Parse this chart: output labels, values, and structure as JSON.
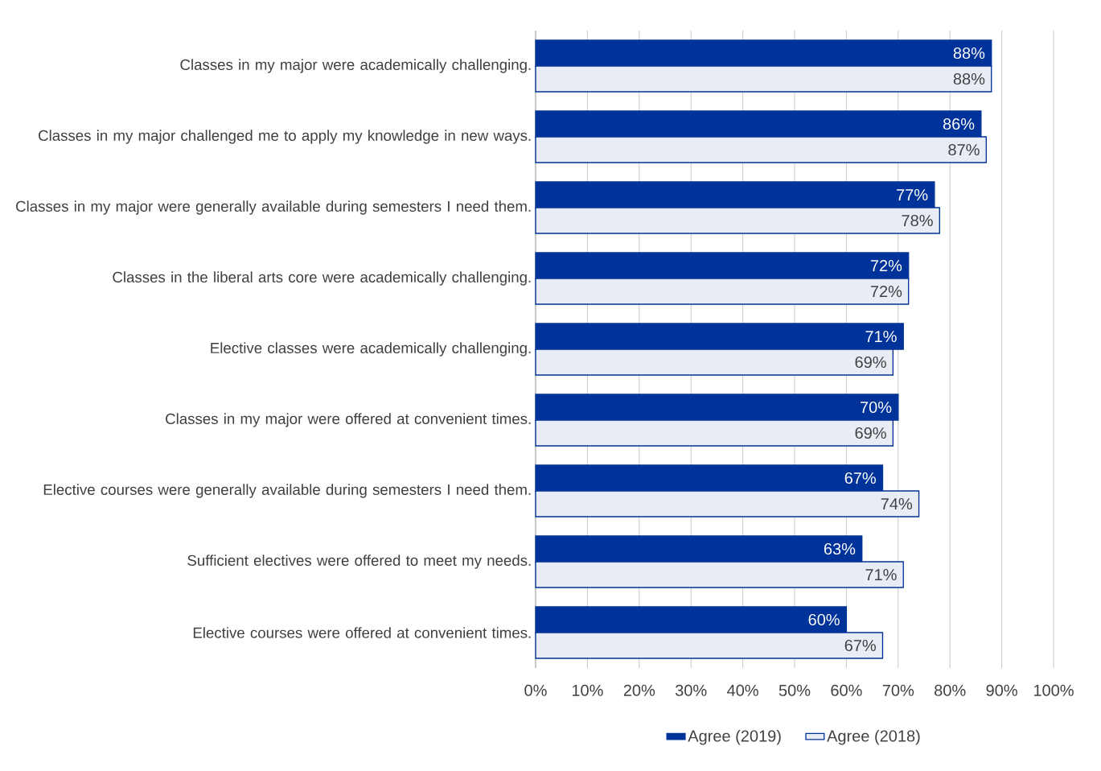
{
  "chart_data": {
    "type": "bar",
    "orientation": "horizontal",
    "categories": [
      "Classes in my major were academically challenging.",
      "Classes in my major challenged me to apply my knowledge in new ways.",
      "Classes in my major were generally available during semesters I need them.",
      "Classes in the liberal arts core were academically challenging.",
      "Elective classes were academically challenging.",
      "Classes in my major were offered at convenient times.",
      "Elective courses were generally available during semesters I need them.",
      "Sufficient electives were offered to meet my needs.",
      "Elective courses were offered at convenient times."
    ],
    "series": [
      {
        "name": "Agree (2019)",
        "color": "#003399",
        "values": [
          88,
          86,
          77,
          72,
          71,
          70,
          67,
          63,
          60
        ],
        "value_labels": [
          "88%",
          "86%",
          "77%",
          "72%",
          "71%",
          "70%",
          "67%",
          "63%",
          "60%"
        ]
      },
      {
        "name": "Agree (2018)",
        "color": "#e8ecf5",
        "values": [
          88,
          87,
          78,
          72,
          69,
          69,
          74,
          71,
          67
        ],
        "value_labels": [
          "88%",
          "87%",
          "78%",
          "72%",
          "69%",
          "69%",
          "74%",
          "71%",
          "67%"
        ]
      }
    ],
    "xlim": [
      0,
      100
    ],
    "xticks": [
      {
        "value": 0,
        "label": "0%"
      },
      {
        "value": 10,
        "label": "10%"
      },
      {
        "value": 20,
        "label": "20%"
      },
      {
        "value": 30,
        "label": "30%"
      },
      {
        "value": 40,
        "label": "40%"
      },
      {
        "value": 50,
        "label": "50%"
      },
      {
        "value": 60,
        "label": "60%"
      },
      {
        "value": 70,
        "label": "70%"
      },
      {
        "value": 80,
        "label": "80%"
      },
      {
        "value": 90,
        "label": "90%"
      },
      {
        "value": 100,
        "label": "100%"
      }
    ],
    "grid": "x",
    "legend": "bottom"
  }
}
